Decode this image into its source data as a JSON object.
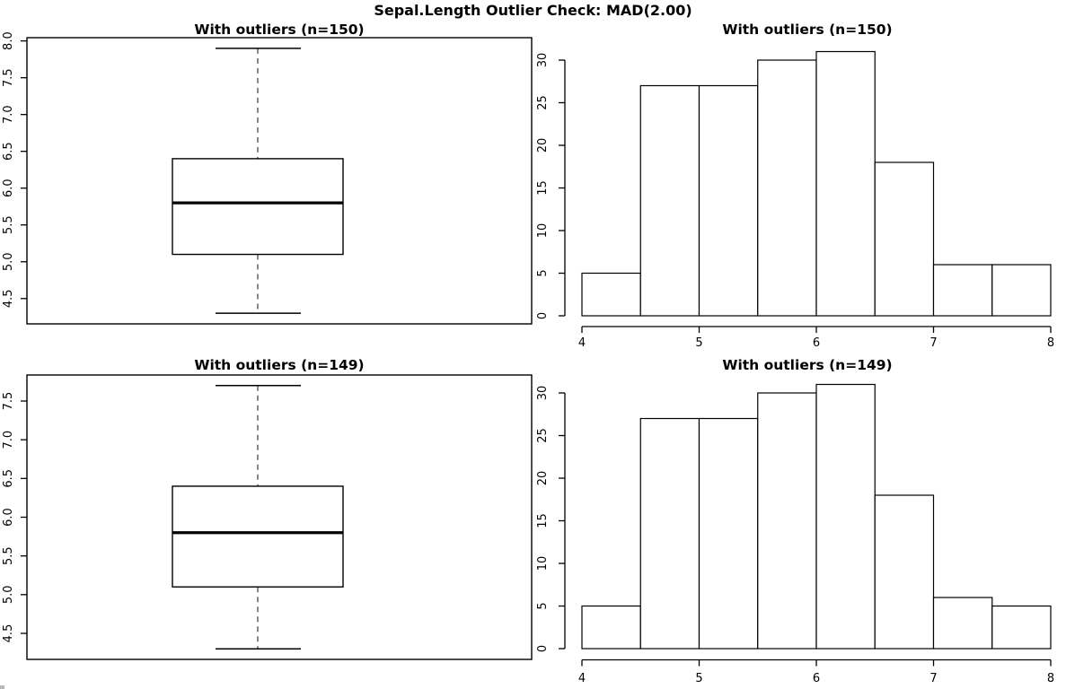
{
  "main_title": "Sepal.Length Outlier Check: MAD(2.00)",
  "colors": {
    "foreground": "#000000",
    "background": "#ffffff",
    "whisker_dash": "#555555",
    "bar_fill": "#ffffff"
  },
  "chart_data": [
    {
      "type": "boxplot",
      "title": "With outliers (n=150)",
      "n": 150,
      "variable": "Sepal.Length",
      "stats": {
        "min": 4.3,
        "q1": 5.1,
        "median": 5.8,
        "q3": 6.4,
        "max": 7.9
      },
      "outliers": [],
      "y_ticks": [
        "4.5",
        "5.0",
        "5.5",
        "6.0",
        "6.5",
        "7.0",
        "7.5",
        "8.0"
      ],
      "ylim": [
        4.156,
        8.044
      ],
      "grid": false,
      "legend": "none",
      "box": true
    },
    {
      "type": "bar",
      "subtype": "histogram",
      "title": "With outliers (n=150)",
      "n": 150,
      "variable": "Sepal.Length",
      "bin_edges": [
        4,
        4.5,
        5,
        5.5,
        6,
        6.5,
        7,
        7.5,
        8
      ],
      "counts": [
        5,
        27,
        27,
        30,
        31,
        18,
        6,
        6
      ],
      "x_ticks": [
        "4",
        "5",
        "6",
        "7",
        "8"
      ],
      "x_tick_values": [
        4,
        5,
        6,
        7,
        8
      ],
      "y_ticks": [
        0,
        5,
        10,
        15,
        20,
        25,
        30
      ],
      "xlim": [
        4,
        8
      ],
      "ylim": [
        0,
        31
      ],
      "grid": false,
      "legend": "none",
      "box": false
    },
    {
      "type": "boxplot",
      "title": "With outliers (n=149)",
      "n": 149,
      "variable": "Sepal.Length",
      "stats": {
        "min": 4.3,
        "q1": 5.1,
        "median": 5.8,
        "q3": 6.4,
        "max": 7.7
      },
      "outliers": [],
      "y_ticks": [
        "4.5",
        "5.0",
        "5.5",
        "6.0",
        "6.5",
        "7.0",
        "7.5"
      ],
      "ylim": [
        4.164,
        7.836
      ],
      "grid": false,
      "legend": "none",
      "box": true
    },
    {
      "type": "bar",
      "subtype": "histogram",
      "title": "With outliers (n=149)",
      "n": 149,
      "variable": "Sepal.Length",
      "bin_edges": [
        4,
        4.5,
        5,
        5.5,
        6,
        6.5,
        7,
        7.5,
        8
      ],
      "counts": [
        5,
        27,
        27,
        30,
        31,
        18,
        6,
        5
      ],
      "x_ticks": [
        "4",
        "5",
        "6",
        "7",
        "8"
      ],
      "x_tick_values": [
        4,
        5,
        6,
        7,
        8
      ],
      "y_ticks": [
        0,
        5,
        10,
        15,
        20,
        25,
        30
      ],
      "xlim": [
        4,
        8
      ],
      "ylim": [
        0,
        31
      ],
      "grid": false,
      "legend": "none",
      "box": false
    }
  ]
}
